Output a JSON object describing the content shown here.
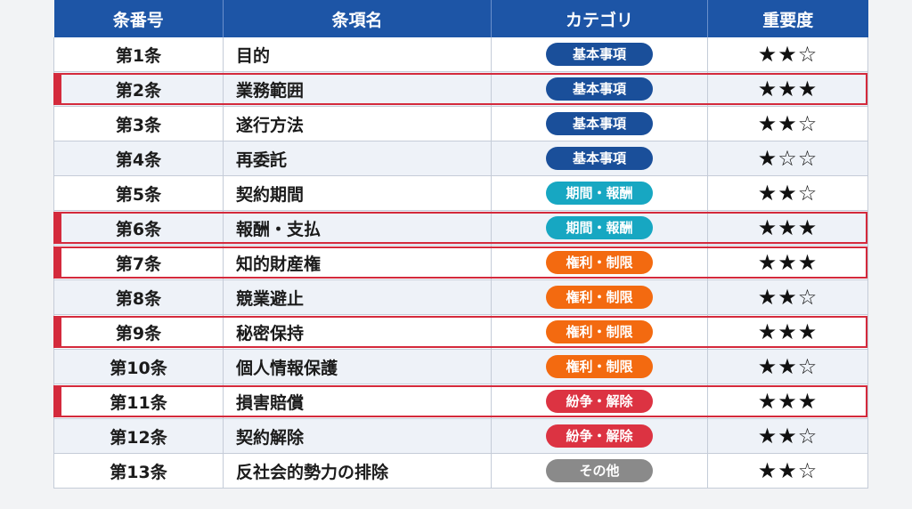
{
  "header": {
    "col_number": "条番号",
    "col_name": "条項名",
    "col_category": "カテゴリ",
    "col_importance": "重要度"
  },
  "category_colors": {
    "基本事項": "#1a4f9a",
    "期間・報酬": "#17a7c2",
    "権利・制限": "#f36a10",
    "紛争・解除": "#dc3342",
    "その他": "#8a8a8a",
    "highlight": "#d42a3c"
  },
  "rows": [
    {
      "number": "第1条",
      "name": "目的",
      "category": "基本事項",
      "stars": "★★☆",
      "highlighted": false
    },
    {
      "number": "第2条",
      "name": "業務範囲",
      "category": "基本事項",
      "stars": "★★★",
      "highlighted": true
    },
    {
      "number": "第3条",
      "name": "遂行方法",
      "category": "基本事項",
      "stars": "★★☆",
      "highlighted": false
    },
    {
      "number": "第4条",
      "name": "再委託",
      "category": "基本事項",
      "stars": "★☆☆",
      "highlighted": false
    },
    {
      "number": "第5条",
      "name": "契約期間",
      "category": "期間・報酬",
      "stars": "★★☆",
      "highlighted": false
    },
    {
      "number": "第6条",
      "name": "報酬・支払",
      "category": "期間・報酬",
      "stars": "★★★",
      "highlighted": true
    },
    {
      "number": "第7条",
      "name": "知的財産権",
      "category": "権利・制限",
      "stars": "★★★",
      "highlighted": true
    },
    {
      "number": "第8条",
      "name": "競業避止",
      "category": "権利・制限",
      "stars": "★★☆",
      "highlighted": false
    },
    {
      "number": "第9条",
      "name": "秘密保持",
      "category": "権利・制限",
      "stars": "★★★",
      "highlighted": true
    },
    {
      "number": "第10条",
      "name": "個人情報保護",
      "category": "権利・制限",
      "stars": "★★☆",
      "highlighted": false
    },
    {
      "number": "第11条",
      "name": "損害賠償",
      "category": "紛争・解除",
      "stars": "★★★",
      "highlighted": true
    },
    {
      "number": "第12条",
      "name": "契約解除",
      "category": "紛争・解除",
      "stars": "★★☆",
      "highlighted": false
    },
    {
      "number": "第13条",
      "name": "反社会的勢力の排除",
      "category": "その他",
      "stars": "★★☆",
      "highlighted": false
    }
  ]
}
